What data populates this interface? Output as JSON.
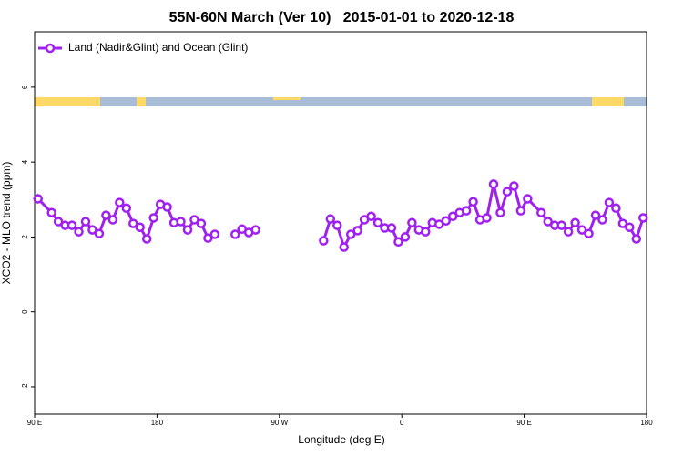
{
  "chart_data": {
    "type": "line",
    "title": "55N-60N March (Ver 10)   2015-01-01 to 2020-12-18",
    "xlabel": "Longitude (deg E)",
    "ylabel": "XCO2 - MLO trend (ppm)",
    "xlim": [
      90,
      540
    ],
    "ylim": [
      -2.73,
      7.48
    ],
    "xticks": [
      {
        "value": 90,
        "label": "90 E"
      },
      180,
      {
        "value": 270,
        "label": "90 W"
      },
      {
        "value": 360,
        "label": "0"
      },
      {
        "value": 450,
        "label": "90 E"
      },
      {
        "value": 540,
        "label": "180"
      }
    ],
    "yticks": [
      -2,
      0,
      2,
      4,
      6
    ],
    "legend": "upper left",
    "series": [
      {
        "name": "Land (Nadir&Glint) and Ocean (Glint)",
        "color": "#a020f0",
        "x": [
          92.5,
          102.5,
          107.5,
          112.5,
          117.5,
          122.5,
          127.5,
          132.5,
          137.5,
          142.5,
          147.5,
          152.5,
          157.5,
          162.5,
          167.5,
          172.5,
          177.5,
          182.5,
          187.5,
          192.5,
          197.5,
          202.5,
          207.5,
          212.5,
          217.5,
          222.5,
          227.5,
          237.5,
          242.5,
          247.5,
          252.5,
          257.5,
          302.5,
          307.5,
          312.5,
          317.5,
          322.5,
          327.5,
          332.5,
          337.5,
          342.5,
          347.5,
          352.5,
          357.5,
          362.5,
          367.5,
          372.5,
          377.5,
          382.5,
          387.5,
          392.5,
          397.5,
          402.5,
          407.5,
          412.5,
          417.5,
          422.5,
          427.5,
          432.5,
          437.5,
          442.5,
          447.5,
          452.5,
          462.5,
          467.5,
          472.5,
          477.5,
          482.5,
          487.5,
          492.5,
          497.5,
          502.5,
          507.5,
          512.5,
          517.5,
          522.5,
          527.5,
          532.5,
          537.5
        ],
        "values": [
          3.02,
          2.65,
          2.41,
          2.31,
          2.31,
          2.14,
          2.41,
          2.19,
          2.09,
          2.58,
          2.46,
          2.92,
          2.77,
          2.36,
          2.26,
          1.95,
          2.51,
          2.87,
          2.8,
          2.38,
          2.41,
          2.19,
          2.46,
          2.36,
          1.97,
          2.07,
          null,
          2.07,
          2.21,
          2.12,
          2.19,
          null,
          1.9,
          2.48,
          2.31,
          1.73,
          2.07,
          2.17,
          2.46,
          2.55,
          2.38,
          2.24,
          2.24,
          1.87,
          2.0,
          2.38,
          2.19,
          2.14,
          2.38,
          2.34,
          2.43,
          2.55,
          2.65,
          2.7,
          2.94,
          2.46,
          2.51,
          3.41,
          2.65,
          3.21,
          3.36,
          2.7,
          3.02,
          2.65,
          2.41,
          2.31,
          2.31,
          2.14,
          2.38,
          2.19,
          2.09,
          2.58,
          2.46,
          2.92,
          2.77,
          2.36,
          2.26,
          1.95,
          2.51
        ]
      }
    ]
  }
}
